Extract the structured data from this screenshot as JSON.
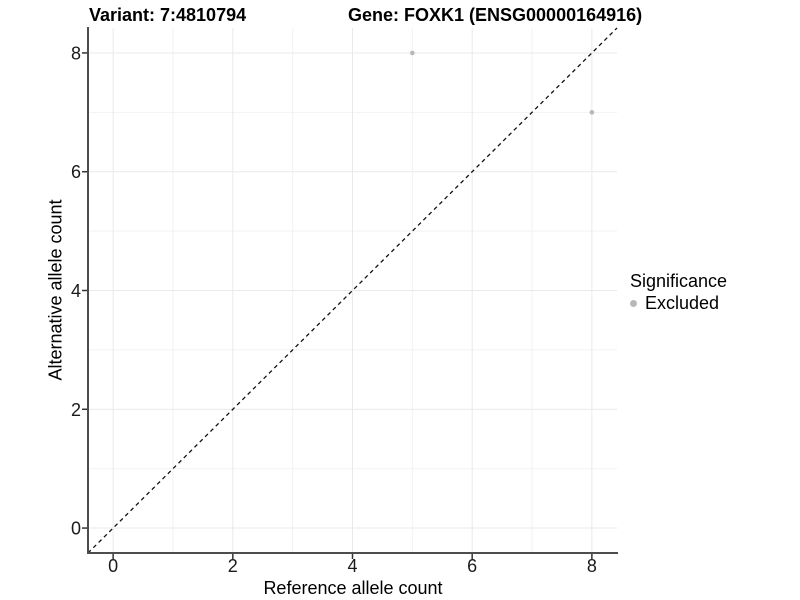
{
  "header": {
    "variant_title": "Variant: 7:4810794",
    "gene_title": "Gene: FOXK1 (ENSG00000164916)"
  },
  "legend": {
    "title": "Significance",
    "items": [
      {
        "label": "Excluded",
        "color": "#b8b8b8"
      }
    ]
  },
  "chart_data": {
    "type": "scatter",
    "title": "Variant: 7:4810794   Gene: FOXK1 (ENSG00000164916)",
    "xlabel": "Reference allele count",
    "ylabel": "Alternative allele count",
    "xlim": [
      -0.42,
      8.42
    ],
    "ylim": [
      -0.42,
      8.42
    ],
    "x_ticks": [
      0,
      2,
      4,
      6,
      8
    ],
    "y_ticks": [
      0,
      2,
      4,
      6,
      8
    ],
    "x_minor_ticks": [
      1,
      3,
      5,
      7
    ],
    "y_minor_ticks": [
      1,
      3,
      5,
      7
    ],
    "grid": true,
    "legend_position": "right",
    "series": [
      {
        "name": "Excluded",
        "color": "#b8b8b8",
        "points": [
          {
            "x": 5,
            "y": 8
          },
          {
            "x": 8,
            "y": 7
          }
        ]
      }
    ],
    "reference_line": {
      "type": "identity",
      "slope": 1,
      "intercept": 0,
      "style": "dashed",
      "color": "#111111"
    },
    "style": {
      "background": "#ffffff",
      "grid_major": "#e9e9e9",
      "grid_minor": "#f2f2f2",
      "axis_line": "#4d4d4d",
      "tick": "#333333",
      "tick_label_color": "#1a1a1a",
      "point_radius": 2.3
    }
  }
}
